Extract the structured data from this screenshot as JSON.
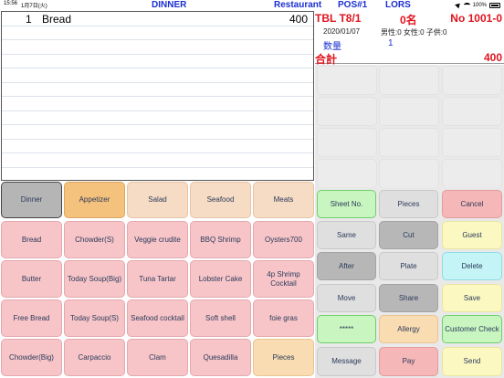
{
  "status_bar": {
    "time": "15:56",
    "date": "1月7日(火)",
    "battery": "100%"
  },
  "header": {
    "meal": "DINNER",
    "shop": "Restaurant",
    "pos": "POS#1",
    "user": "LORS"
  },
  "order_list": {
    "items": [
      {
        "qty": "1",
        "name": "Bread",
        "price": "400"
      }
    ]
  },
  "info": {
    "table": "TBL T8/1",
    "guests": "0名",
    "order_no": "No 1001-0",
    "date": "2020/01/07",
    "gender": "男性:0 女性:0 子供:0",
    "qty_label": "数量",
    "qty_value": "1",
    "total_label": "合計",
    "total_value": "400"
  },
  "categories": [
    "Dinner",
    "Appetizer",
    "Salad",
    "Seafood",
    "Meats"
  ],
  "menu_rows": [
    [
      "Bread",
      "Chowder(S)",
      "Veggie crudite",
      "BBQ Shrimp",
      "Oysters700"
    ],
    [
      "Butter",
      "Today Soup(Big)",
      "Tuna Tartar",
      "Lobster Cake",
      "4p Shrimp Cocktail"
    ],
    [
      "Free Bread",
      "Today Soup(S)",
      "Seafood cocktail",
      "Soft shell",
      "foie gras"
    ],
    [
      "Chowder(Big)",
      "Carpaccio",
      "Clam",
      "Quesadilla",
      "Pieces"
    ]
  ],
  "functions": [
    [
      "Sheet No.",
      "Pieces",
      "Cancel"
    ],
    [
      "Same",
      "Cut",
      "Guest"
    ],
    [
      "After",
      "Plate",
      "Delete"
    ],
    [
      "Move",
      "Share",
      "Save"
    ],
    [
      "*****",
      "Allergy",
      "Customer Check"
    ],
    [
      "Message",
      "Pay",
      "Send"
    ]
  ],
  "colors": {
    "header_text": "#1a2fd0",
    "info_red": "#e0141e"
  }
}
